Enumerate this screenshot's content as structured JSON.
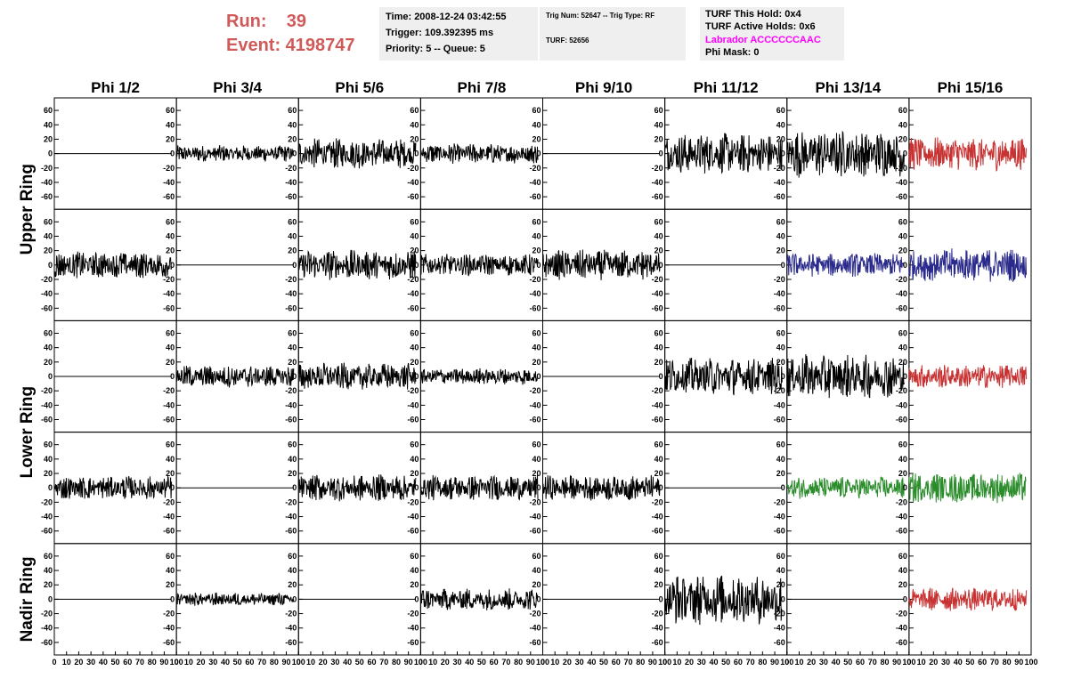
{
  "header": {
    "run_label": "Run:    39",
    "event_label": "Event: 4198747"
  },
  "info_box_1": {
    "time": "Time: 2008-12-24 03:42:55",
    "trigger": "Trigger: 109.392395 ms",
    "priority": "Priority: 5 -- Queue: 5"
  },
  "info_box_2": {
    "trig": "Trig Num: 52647 -- Trig Type: RF",
    "turf": "TURF: 52656"
  },
  "info_box_3": {
    "this_hold": "TURF This Hold: 0x4",
    "active_holds": "TURF Active Holds: 0x6",
    "labrador": "Labrador ACCCCCCAAC",
    "phi_mask": "Phi Mask: 0",
    "labrador_color": "#ff00ff"
  },
  "chart_data": {
    "type": "line",
    "columns": [
      "Phi 1/2",
      "Phi 3/4",
      "Phi 5/6",
      "Phi 7/8",
      "Phi 9/10",
      "Phi 11/12",
      "Phi 13/14",
      "Phi 15/16"
    ],
    "rows": [
      "Upper Ring",
      "Upper Ring",
      "Lower Ring",
      "Lower Ring",
      "Nadir Ring"
    ],
    "ring_labels": [
      "Upper Ring",
      "Lower Ring",
      "Nadir Ring"
    ],
    "xlim": [
      0,
      100
    ],
    "ylim": [
      -70,
      70
    ],
    "x_ticks": [
      "0",
      "10",
      "20",
      "30",
      "40",
      "50",
      "60",
      "70",
      "80",
      "90",
      "100"
    ],
    "y_ticks": [
      "60",
      "40",
      "20",
      "0",
      "-20",
      "-40",
      "-60"
    ],
    "colors": {
      "black": "#000000",
      "red": "#c83232",
      "blue": "#2a2a8c",
      "green": "#2a8c2a"
    },
    "samples_per_trace": 256,
    "trace_x_end": 96,
    "panels": [
      [
        {
          "a": 0,
          "c": "black"
        },
        {
          "a": 10,
          "c": "black"
        },
        {
          "a": 18,
          "c": "black"
        },
        {
          "a": 12,
          "c": "black"
        },
        {
          "a": 0,
          "c": "black"
        },
        {
          "a": 24,
          "c": "black"
        },
        {
          "a": 28,
          "c": "black"
        },
        {
          "a": 20,
          "c": "red"
        }
      ],
      [
        {
          "a": 16,
          "c": "black"
        },
        {
          "a": 0,
          "c": "black"
        },
        {
          "a": 18,
          "c": "black"
        },
        {
          "a": 13,
          "c": "black"
        },
        {
          "a": 18,
          "c": "black"
        },
        {
          "a": 0,
          "c": "black"
        },
        {
          "a": 14,
          "c": "blue"
        },
        {
          "a": 20,
          "c": "blue"
        }
      ],
      [
        {
          "a": 0,
          "c": "black"
        },
        {
          "a": 13,
          "c": "black"
        },
        {
          "a": 16,
          "c": "black"
        },
        {
          "a": 10,
          "c": "black"
        },
        {
          "a": 0,
          "c": "black"
        },
        {
          "a": 22,
          "c": "black"
        },
        {
          "a": 26,
          "c": "black"
        },
        {
          "a": 14,
          "c": "red"
        }
      ],
      [
        {
          "a": 14,
          "c": "black"
        },
        {
          "a": 0,
          "c": "black"
        },
        {
          "a": 16,
          "c": "black"
        },
        {
          "a": 15,
          "c": "black"
        },
        {
          "a": 15,
          "c": "black"
        },
        {
          "a": 0,
          "c": "black"
        },
        {
          "a": 13,
          "c": "green"
        },
        {
          "a": 18,
          "c": "green"
        }
      ],
      [
        {
          "a": 0,
          "c": "black"
        },
        {
          "a": 8,
          "c": "black"
        },
        {
          "a": 0,
          "c": "black"
        },
        {
          "a": 13,
          "c": "black"
        },
        {
          "a": 0,
          "c": "black"
        },
        {
          "a": 30,
          "c": "black"
        },
        {
          "a": 0,
          "c": "black"
        },
        {
          "a": 14,
          "c": "red"
        }
      ]
    ]
  }
}
